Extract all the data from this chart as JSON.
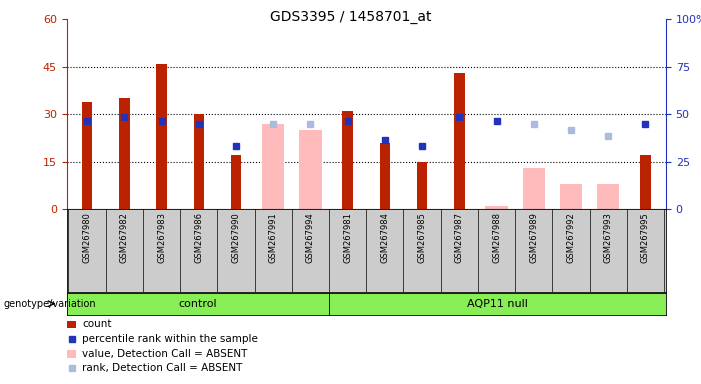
{
  "title": "GDS3395 / 1458701_at",
  "samples": [
    "GSM267980",
    "GSM267982",
    "GSM267983",
    "GSM267986",
    "GSM267990",
    "GSM267991",
    "GSM267994",
    "GSM267981",
    "GSM267984",
    "GSM267985",
    "GSM267987",
    "GSM267988",
    "GSM267989",
    "GSM267992",
    "GSM267993",
    "GSM267995"
  ],
  "n_control": 7,
  "red_bars": [
    34,
    35,
    46,
    30,
    17,
    0,
    0,
    31,
    21,
    15,
    43,
    0,
    0,
    0,
    0,
    17
  ],
  "blue_sq_left": [
    28,
    29,
    28,
    27,
    20,
    0,
    0,
    28,
    22,
    20,
    29,
    28,
    0,
    0,
    0,
    27
  ],
  "pink_bars_left": [
    0,
    0,
    0,
    0,
    0,
    27,
    25,
    0,
    0,
    0,
    0,
    1,
    13,
    8,
    8,
    0
  ],
  "lb_sq_left": [
    0,
    0,
    0,
    0,
    0,
    27,
    27,
    0,
    0,
    0,
    0,
    0,
    27,
    25,
    23,
    0
  ],
  "ylim_left": [
    0,
    60
  ],
  "ylim_right": [
    0,
    100
  ],
  "yticks_left": [
    0,
    15,
    30,
    45,
    60
  ],
  "yticks_right": [
    0,
    25,
    50,
    75,
    100
  ],
  "red_color": "#BB2200",
  "blue_color": "#2233BB",
  "pink_color": "#FFBBBB",
  "lb_color": "#AABBDD",
  "group_color": "#88EE55",
  "bg_gray": "#CCCCCC",
  "control_label": "control",
  "aqp11_label": "AQP11 null",
  "legend_items": [
    "count",
    "percentile rank within the sample",
    "value, Detection Call = ABSENT",
    "rank, Detection Call = ABSENT"
  ],
  "fig_width": 7.01,
  "fig_height": 3.84
}
